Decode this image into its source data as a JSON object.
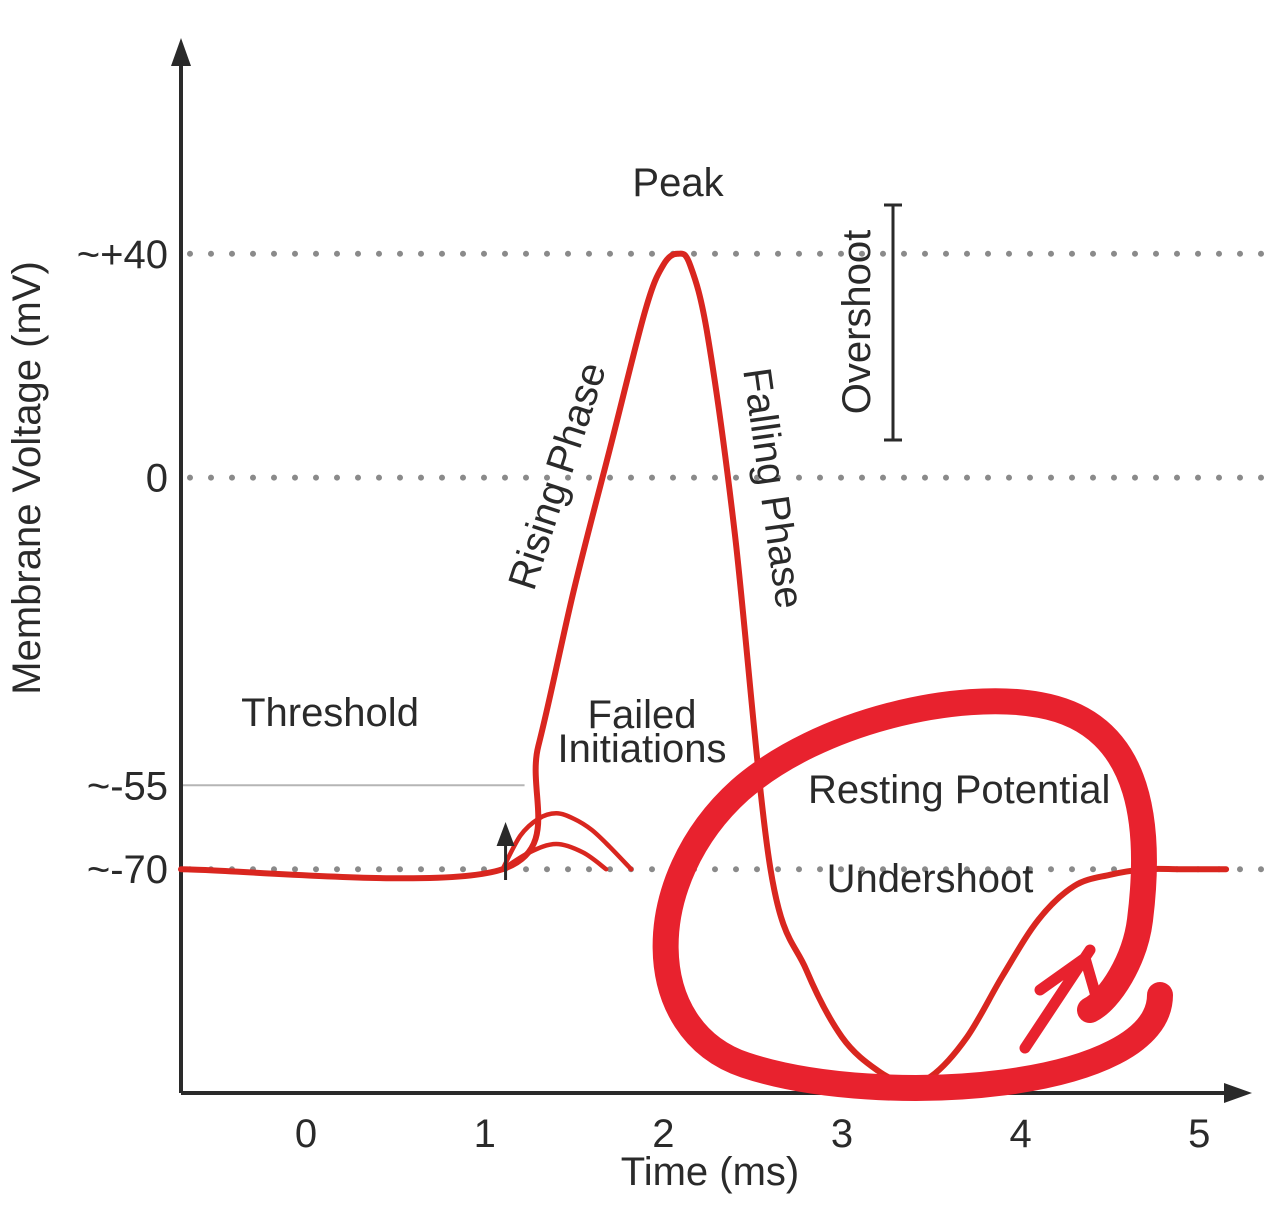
{
  "chart_data": {
    "type": "line",
    "xlabel": "Time (ms)",
    "ylabel": "Membrane Voltage (mV)",
    "x_ticks": [
      "0",
      "1",
      "2",
      "3",
      "4",
      "5"
    ],
    "y_ticks": [
      {
        "label": "~+40",
        "value": 40
      },
      {
        "label": "0",
        "value": 0
      },
      {
        "label": "~-55",
        "value": -55
      },
      {
        "label": "~-70",
        "value": -70
      }
    ],
    "xlim": [
      -0.7,
      5.2
    ],
    "ylim": [
      -110,
      80
    ],
    "grid": false,
    "reference_lines": [
      {
        "value": 40,
        "style": "dotted"
      },
      {
        "value": 0,
        "style": "dotted"
      },
      {
        "value": -70,
        "style": "dotted"
      },
      {
        "value": -55,
        "style": "solid-thin",
        "x_end": 1.1
      }
    ],
    "series": [
      {
        "color": "#d9261f",
        "x": [
          -0.7,
          1.1,
          1.3,
          1.5,
          1.7,
          1.9,
          2.0,
          2.08,
          2.15,
          2.25,
          2.4,
          2.6,
          2.8,
          3.0,
          3.2,
          3.35,
          3.5,
          3.7,
          3.9,
          4.1,
          4.3,
          4.5,
          4.7,
          4.9,
          5.15
        ],
        "values": [
          -70,
          -70,
          -48,
          -20,
          5,
          30,
          38,
          40,
          38,
          25,
          -10,
          -70,
          -88,
          -100,
          -106,
          -108,
          -107,
          -100,
          -89,
          -79,
          -73,
          -71,
          -70,
          -70,
          -70
        ]
      },
      {
        "color": "#d9261f",
        "x": [
          1.1,
          1.2,
          1.3,
          1.4,
          1.5,
          1.6,
          1.7,
          1.82
        ],
        "values": [
          -70,
          -64,
          -61,
          -60,
          -61,
          -63,
          -66,
          -70
        ]
      },
      {
        "color": "#d9261f",
        "x": [
          1.1,
          1.25,
          1.4,
          1.55,
          1.68
        ],
        "values": [
          -70,
          -67,
          -65.5,
          -67,
          -70
        ]
      }
    ],
    "annotations": [
      {
        "text": "Peak"
      },
      {
        "text": "Rising Phase"
      },
      {
        "text": "Falling Phase"
      },
      {
        "text": "Overshoot"
      },
      {
        "text": "Threshold"
      },
      {
        "text": "Failed"
      },
      {
        "text": "Initiations"
      },
      {
        "text": "Resting Potential"
      },
      {
        "text": "Undershoot"
      }
    ],
    "stimulus_marker_x": 1.1,
    "highlight": {
      "shape": "hand-drawn circle with arrow",
      "color": "#e8222e"
    }
  }
}
